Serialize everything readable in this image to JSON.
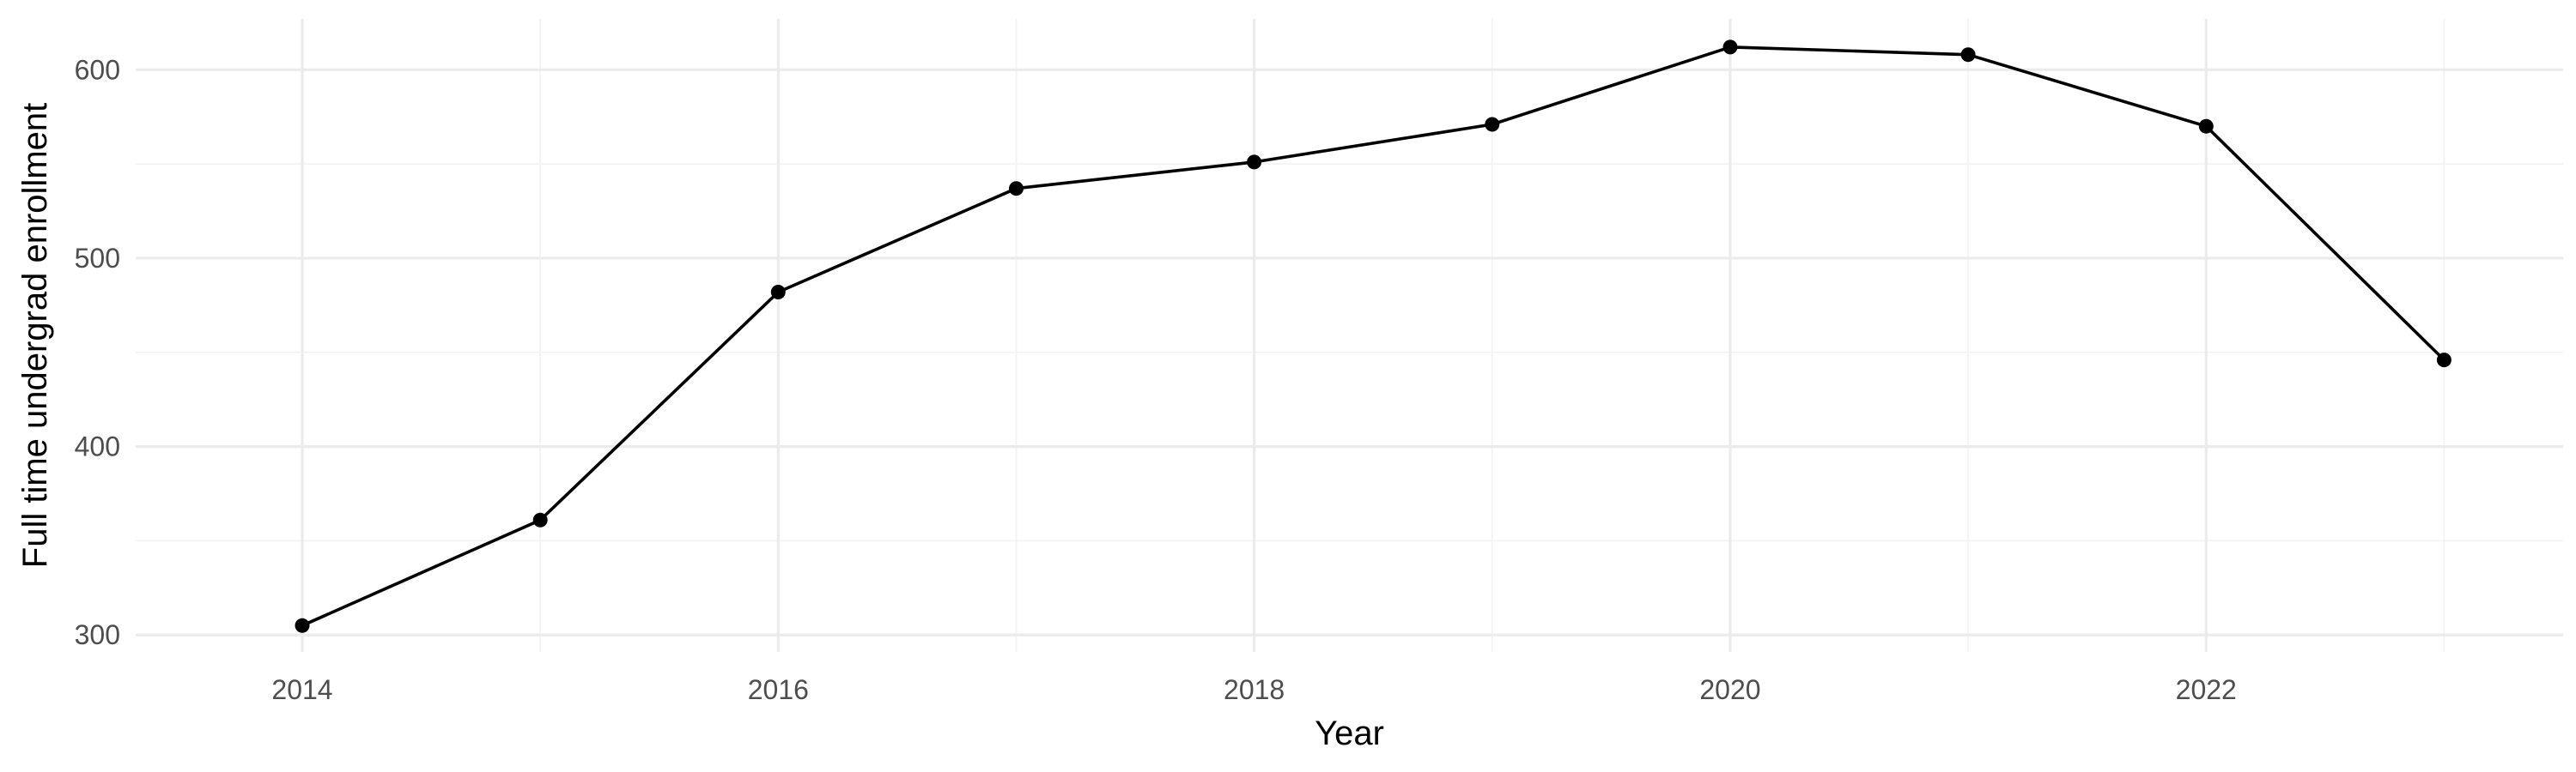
{
  "chart_data": {
    "type": "line",
    "title": "",
    "xlabel": "Year",
    "ylabel": "Full time undergrad enrollment",
    "xlim": [
      2013.3,
      2023.5
    ],
    "ylim": [
      291,
      627
    ],
    "x_ticks": [
      2014,
      2016,
      2018,
      2020,
      2022
    ],
    "y_ticks": [
      300,
      400,
      500,
      600
    ],
    "grid": true,
    "legend": "none",
    "series": [
      {
        "x": [
          2014,
          2015,
          2016,
          2017,
          2018,
          2019,
          2020,
          2021,
          2022,
          2023
        ],
        "values": [
          305,
          361,
          482,
          537,
          551,
          571,
          612,
          608,
          570,
          446
        ],
        "color": "#000000"
      }
    ]
  }
}
